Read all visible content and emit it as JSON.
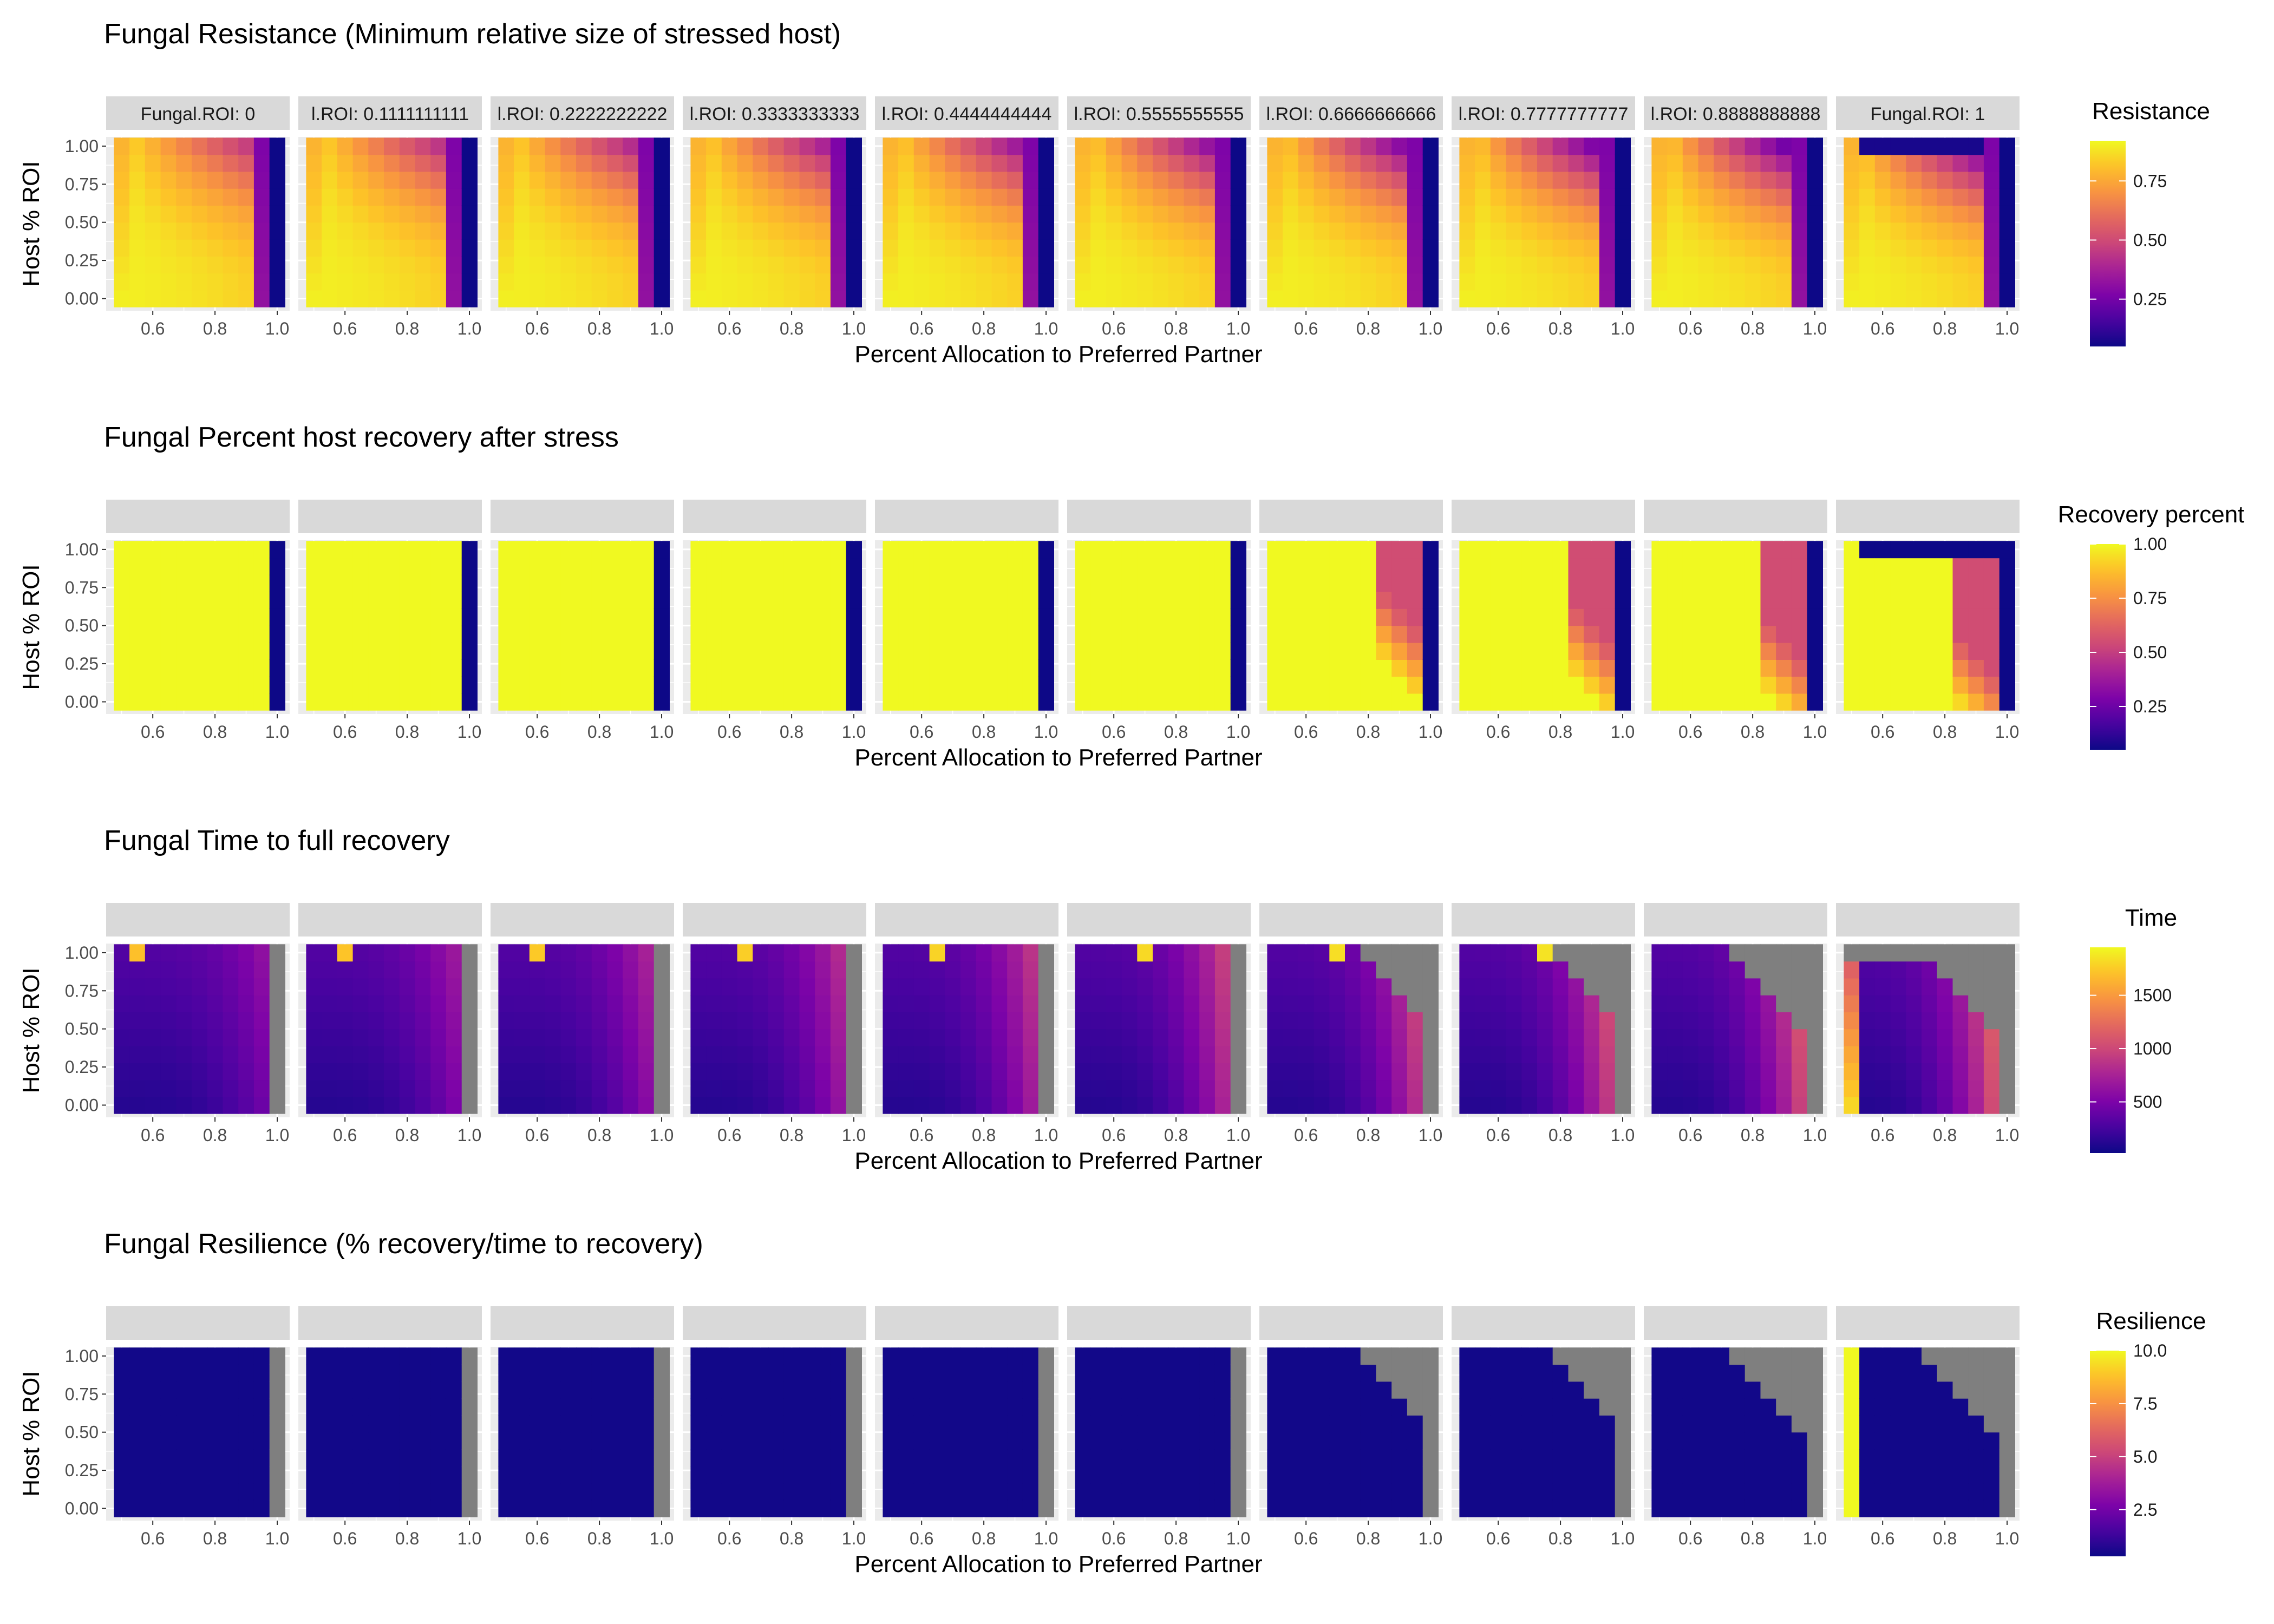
{
  "chart_data": {
    "type": "heatmap",
    "facet_strip_labels": [
      "Fungal.ROI: 0",
      "l.ROI: 0.1111111111",
      "l.ROI: 0.2222222222",
      "l.ROI: 0.3333333333",
      "l.ROI: 0.4444444444",
      "l.ROI: 0.5555555555",
      "l.ROI: 0.6666666666",
      "l.ROI: 0.7777777777",
      "l.ROI: 0.8888888888",
      "Fungal.ROI: 1"
    ],
    "fungal_roi": [
      0,
      0.1111111111,
      0.2222222222,
      0.3333333333,
      0.4444444444,
      0.5555555555,
      0.6666666666,
      0.7777777777,
      0.8888888888,
      1
    ],
    "x": [
      0.5,
      0.55,
      0.6,
      0.65,
      0.7,
      0.75,
      0.8,
      0.85,
      0.9,
      0.95,
      1.0
    ],
    "y": [
      0.0,
      0.111,
      0.222,
      0.333,
      0.444,
      0.556,
      0.667,
      0.778,
      0.889,
      1.0
    ],
    "xlabel": "Percent Allocation to Preferred Partner",
    "ylabel": "Host % ROI",
    "x_ticks": [
      "0.6",
      "0.8",
      "1.0"
    ],
    "x_tick_values": [
      0.6,
      0.8,
      1.0
    ],
    "y_ticks": [
      "0.00",
      "0.25",
      "0.50",
      "0.75",
      "1.00"
    ],
    "y_tick_values": [
      0,
      0.25,
      0.5,
      0.75,
      1.0
    ],
    "xlim": [
      0.45,
      1.04
    ],
    "ylim": [
      -0.08,
      1.06
    ],
    "grid": true,
    "colorscale": "plasma",
    "na_color": "#7f7f7f",
    "legend_placement": "right",
    "rows": [
      {
        "title": "Fungal Resistance (Minimum relative size of stressed host)",
        "legend_title": "Resistance",
        "legend_ticks": [
          "0.75",
          "0.50",
          "0.25"
        ],
        "legend_tick_values": [
          0.75,
          0.5,
          0.25
        ],
        "range": [
          0.05,
          0.92
        ],
        "metric": "resistance"
      },
      {
        "title": "Fungal Percent host recovery after stress",
        "legend_title": "Recovery percent",
        "legend_ticks": [
          "1.00",
          "0.75",
          "0.50",
          "0.25"
        ],
        "legend_tick_values": [
          1.0,
          0.75,
          0.5,
          0.25
        ],
        "range": [
          0.05,
          1.0
        ],
        "metric": "recovery"
      },
      {
        "title": "Fungal Time to full recovery",
        "legend_title": "Time",
        "legend_ticks": [
          "1500",
          "1000",
          "500"
        ],
        "legend_tick_values": [
          1500,
          1000,
          500
        ],
        "range": [
          20,
          1950
        ],
        "metric": "time"
      },
      {
        "title": "Fungal Resilience (% recovery/time to recovery)",
        "legend_title": "Resilience",
        "legend_ticks": [
          "10.0",
          "7.5",
          "5.0",
          "2.5"
        ],
        "legend_tick_values": [
          10,
          7.5,
          5,
          2.5
        ],
        "range": [
          0.3,
          10
        ],
        "metric": "resilience"
      }
    ]
  }
}
